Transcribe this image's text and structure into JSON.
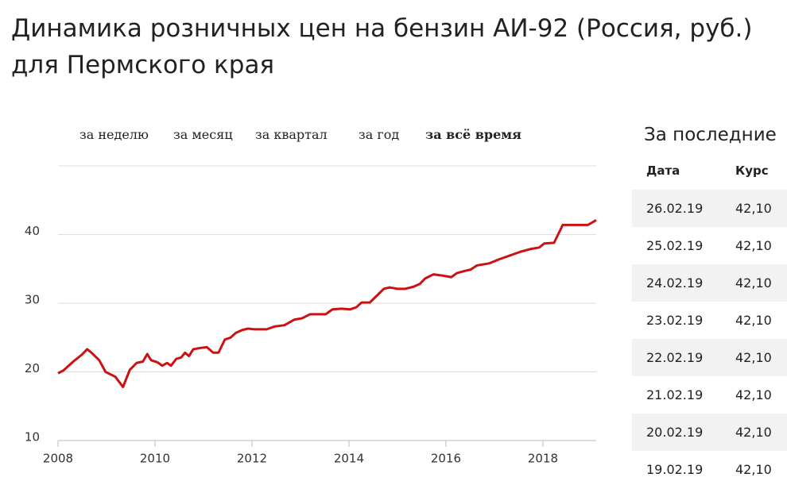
{
  "header": {
    "title_line1": "Динамика розничных цен на бензин АИ-92 (Россия, руб.)",
    "title_line2": "для Пермского края"
  },
  "tabs": {
    "items": [
      "за неделю",
      "за месяц",
      "за квартал",
      "за год",
      "за всё время"
    ],
    "active": 4
  },
  "chart_data": {
    "type": "line",
    "x": [
      2008.0,
      2008.11,
      2008.33,
      2008.49,
      2008.6,
      2008.69,
      2008.85,
      2008.98,
      2009.18,
      2009.34,
      2009.48,
      2009.62,
      2009.75,
      2009.84,
      2009.92,
      2010.05,
      2010.15,
      2010.25,
      2010.33,
      2010.44,
      2010.54,
      2010.62,
      2010.7,
      2010.79,
      2010.95,
      2011.07,
      2011.2,
      2011.31,
      2011.44,
      2011.56,
      2011.67,
      2011.8,
      2011.92,
      2012.05,
      2012.3,
      2012.46,
      2012.67,
      2012.87,
      2013.03,
      2013.2,
      2013.36,
      2013.52,
      2013.66,
      2013.85,
      2014.02,
      2014.15,
      2014.26,
      2014.43,
      2014.59,
      2014.72,
      2014.84,
      2015.0,
      2015.16,
      2015.33,
      2015.46,
      2015.57,
      2015.74,
      2015.95,
      2016.11,
      2016.23,
      2016.39,
      2016.51,
      2016.64,
      2016.89,
      2017.1,
      2017.3,
      2017.54,
      2017.75,
      2017.92,
      2018.03,
      2018.23,
      2018.41,
      2018.61,
      2018.93,
      2019.1
    ],
    "series": [
      {
        "name": "АИ-92",
        "color": "#cc1111",
        "values": [
          19.8,
          20.2,
          21.6,
          22.5,
          23.3,
          22.8,
          21.7,
          20.0,
          19.3,
          17.8,
          20.3,
          21.3,
          21.5,
          22.6,
          21.7,
          21.4,
          20.9,
          21.3,
          20.9,
          21.9,
          22.1,
          22.8,
          22.3,
          23.3,
          23.5,
          23.6,
          22.8,
          22.8,
          24.7,
          25.0,
          25.7,
          26.1,
          26.3,
          26.2,
          26.2,
          26.6,
          26.8,
          27.6,
          27.8,
          28.4,
          28.4,
          28.4,
          29.1,
          29.2,
          29.1,
          29.4,
          30.1,
          30.1,
          31.2,
          32.1,
          32.3,
          32.1,
          32.1,
          32.4,
          32.8,
          33.6,
          34.2,
          34.0,
          33.8,
          34.4,
          34.7,
          34.9,
          35.5,
          35.8,
          36.4,
          36.9,
          37.5,
          37.9,
          38.1,
          38.7,
          38.8,
          41.4,
          41.4,
          41.4,
          42.1
        ]
      }
    ],
    "xlim": [
      2008,
      2019.1
    ],
    "xticks": [
      2008,
      2010,
      2012,
      2014,
      2016,
      2018
    ],
    "ylim": [
      10,
      50
    ],
    "yticks": [
      10,
      20,
      30,
      40
    ],
    "grid": true
  },
  "table": {
    "title": "За последние",
    "columns": [
      "Дата",
      "Курс"
    ],
    "rows": [
      [
        "26.02.19",
        "42,10"
      ],
      [
        "25.02.19",
        "42,10"
      ],
      [
        "24.02.19",
        "42,10"
      ],
      [
        "23.02.19",
        "42,10"
      ],
      [
        "22.02.19",
        "42,10"
      ],
      [
        "21.02.19",
        "42,10"
      ],
      [
        "20.02.19",
        "42,10"
      ],
      [
        "19.02.19",
        "42,10"
      ]
    ]
  }
}
